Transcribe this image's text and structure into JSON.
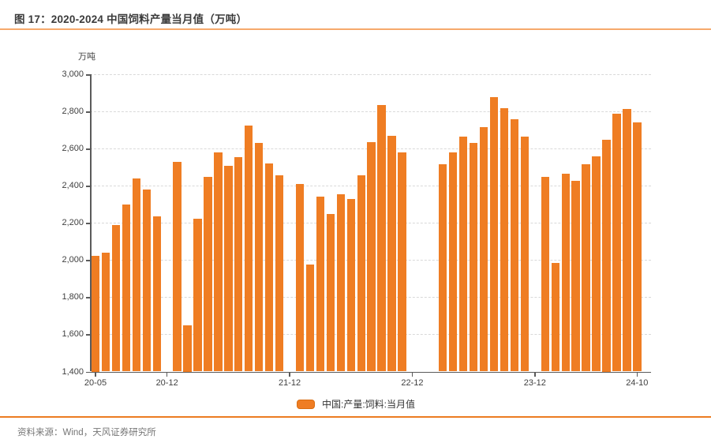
{
  "title": "图 17：2020-2024 中国饲料产量当月值（万吨）",
  "footer": {
    "source_text": "资料来源：Wind，天风证券研究所"
  },
  "colors": {
    "bar": "#ef7d23",
    "title_rule": "#f6a96c",
    "footer_rule": "#ec7c21",
    "axis": "#5a5a5a",
    "grid": "#d9d9d9",
    "label_text": "#404040",
    "source_text": "#767676"
  },
  "chart_data": {
    "type": "bar",
    "title": "图 17：2020-2024 中国饲料产量当月值（万吨）",
    "unit_label": "万吨",
    "legend_label": "中国:产量:饲料:当月值",
    "legend_position": "bottom",
    "grid": true,
    "ylim": [
      1400,
      3000
    ],
    "ytick_step": 200,
    "ytick_labels": [
      "1,400",
      "1,600",
      "1,800",
      "2,000",
      "2,200",
      "2,400",
      "2,600",
      "2,800",
      "3,000"
    ],
    "x_slots": 54,
    "xticks": [
      {
        "slot": 0,
        "label": "20-05"
      },
      {
        "slot": 7,
        "label": "20-12"
      },
      {
        "slot": 19,
        "label": "21-12"
      },
      {
        "slot": 31,
        "label": "22-12"
      },
      {
        "slot": 43,
        "label": "23-12"
      },
      {
        "slot": 53,
        "label": "24-10"
      }
    ],
    "series": [
      {
        "name": "中国:产量:饲料:当月值",
        "values": [
          2025,
          2040,
          2190,
          2300,
          2440,
          2380,
          2235,
          null,
          2530,
          1650,
          2225,
          2450,
          2580,
          2510,
          2555,
          2725,
          2630,
          2520,
          2455,
          null,
          2410,
          1975,
          2340,
          2250,
          2355,
          2330,
          2455,
          2635,
          2835,
          2670,
          2580,
          null,
          null,
          null,
          2515,
          2580,
          2665,
          2630,
          2715,
          2880,
          2820,
          2760,
          2665,
          null,
          2450,
          1985,
          2465,
          2425,
          2515,
          2560,
          2650,
          2790,
          2815,
          2740
        ]
      }
    ]
  }
}
